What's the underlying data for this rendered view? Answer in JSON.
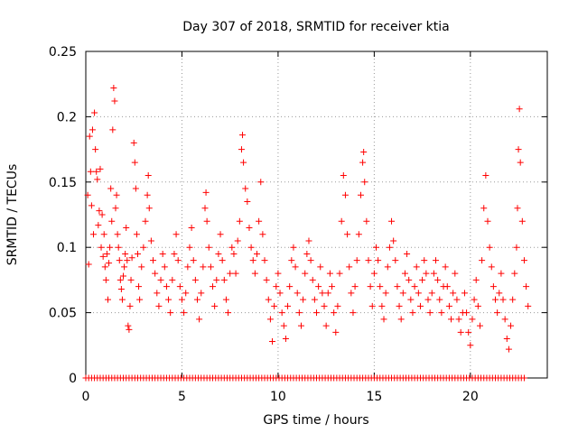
{
  "chart_data": {
    "type": "scatter",
    "title": "Day 307 of 2018, SRMTID for receiver ktia",
    "xlabel": "GPS time / hours",
    "ylabel": "SRMTID / TECUs",
    "xlim": [
      0,
      24
    ],
    "ylim": [
      0,
      0.25
    ],
    "xticks": [
      0,
      5,
      10,
      15,
      20
    ],
    "xtick_labels": [
      "0",
      "5",
      "10",
      "15",
      "20"
    ],
    "yticks": [
      0,
      0.05,
      0.1,
      0.15,
      0.2,
      0.25
    ],
    "ytick_labels": [
      "0",
      "0.05",
      "0.1",
      "0.15",
      "0.2",
      "0.25"
    ],
    "grid": true,
    "marker": "+",
    "color": "#ff0000",
    "series": [
      {
        "name": "SRMTID",
        "points": [
          [
            0.1,
            0.14
          ],
          [
            0.15,
            0.087
          ],
          [
            0.2,
            0.185
          ],
          [
            0.25,
            0.158
          ],
          [
            0.3,
            0.132
          ],
          [
            0.35,
            0.19
          ],
          [
            0.4,
            0.11
          ],
          [
            0.45,
            0.203
          ],
          [
            0.5,
            0.175
          ],
          [
            0.55,
            0.158
          ],
          [
            0.6,
            0.152
          ],
          [
            0.65,
            0.117
          ],
          [
            0.7,
            0.128
          ],
          [
            0.75,
            0.16
          ],
          [
            0.8,
            0.1
          ],
          [
            0.85,
            0.125
          ],
          [
            0.9,
            0.093
          ],
          [
            0.95,
            0.11
          ],
          [
            1.0,
            0.085
          ],
          [
            1.05,
            0.075
          ],
          [
            1.1,
            0.095
          ],
          [
            1.15,
            0.06
          ],
          [
            1.2,
            0.088
          ],
          [
            1.25,
            0.1
          ],
          [
            1.3,
            0.145
          ],
          [
            1.35,
            0.12
          ],
          [
            1.4,
            0.19
          ],
          [
            1.45,
            0.222
          ],
          [
            1.5,
            0.212
          ],
          [
            1.55,
            0.13
          ],
          [
            1.6,
            0.14
          ],
          [
            1.65,
            0.11
          ],
          [
            1.7,
            0.1
          ],
          [
            1.75,
            0.09
          ],
          [
            1.8,
            0.075
          ],
          [
            1.85,
            0.068
          ],
          [
            1.9,
            0.06
          ],
          [
            1.95,
            0.078
          ],
          [
            2.0,
            0.085
          ],
          [
            2.05,
            0.095
          ],
          [
            2.1,
            0.115
          ],
          [
            2.15,
            0.09
          ],
          [
            2.2,
            0.04
          ],
          [
            2.25,
            0.037
          ],
          [
            2.3,
            0.055
          ],
          [
            2.35,
            0.075
          ],
          [
            2.4,
            0.092
          ],
          [
            2.5,
            0.18
          ],
          [
            2.55,
            0.165
          ],
          [
            2.6,
            0.145
          ],
          [
            2.65,
            0.11
          ],
          [
            2.7,
            0.095
          ],
          [
            2.75,
            0.07
          ],
          [
            2.8,
            0.06
          ],
          [
            2.9,
            0.085
          ],
          [
            3.0,
            0.1
          ],
          [
            3.1,
            0.12
          ],
          [
            3.2,
            0.14
          ],
          [
            3.25,
            0.155
          ],
          [
            3.3,
            0.13
          ],
          [
            3.4,
            0.105
          ],
          [
            3.5,
            0.09
          ],
          [
            3.6,
            0.08
          ],
          [
            3.7,
            0.065
          ],
          [
            3.8,
            0.055
          ],
          [
            3.9,
            0.075
          ],
          [
            4.0,
            0.095
          ],
          [
            4.1,
            0.085
          ],
          [
            4.2,
            0.07
          ],
          [
            4.3,
            0.06
          ],
          [
            4.4,
            0.05
          ],
          [
            4.5,
            0.075
          ],
          [
            4.6,
            0.095
          ],
          [
            4.7,
            0.11
          ],
          [
            4.8,
            0.09
          ],
          [
            4.9,
            0.07
          ],
          [
            5.0,
            0.06
          ],
          [
            5.1,
            0.05
          ],
          [
            5.2,
            0.065
          ],
          [
            5.3,
            0.085
          ],
          [
            5.4,
            0.1
          ],
          [
            5.5,
            0.115
          ],
          [
            5.6,
            0.09
          ],
          [
            5.7,
            0.075
          ],
          [
            5.8,
            0.06
          ],
          [
            5.9,
            0.045
          ],
          [
            6.0,
            0.065
          ],
          [
            6.1,
            0.085
          ],
          [
            6.2,
            0.13
          ],
          [
            6.25,
            0.142
          ],
          [
            6.3,
            0.12
          ],
          [
            6.4,
            0.1
          ],
          [
            6.5,
            0.085
          ],
          [
            6.6,
            0.07
          ],
          [
            6.7,
            0.055
          ],
          [
            6.8,
            0.075
          ],
          [
            6.9,
            0.095
          ],
          [
            7.0,
            0.11
          ],
          [
            7.1,
            0.09
          ],
          [
            7.2,
            0.075
          ],
          [
            7.3,
            0.06
          ],
          [
            7.4,
            0.05
          ],
          [
            7.5,
            0.08
          ],
          [
            7.6,
            0.1
          ],
          [
            7.7,
            0.095
          ],
          [
            7.8,
            0.08
          ],
          [
            7.9,
            0.105
          ],
          [
            8.0,
            0.12
          ],
          [
            8.1,
            0.175
          ],
          [
            8.15,
            0.186
          ],
          [
            8.2,
            0.165
          ],
          [
            8.3,
            0.145
          ],
          [
            8.4,
            0.135
          ],
          [
            8.5,
            0.115
          ],
          [
            8.6,
            0.1
          ],
          [
            8.7,
            0.09
          ],
          [
            8.8,
            0.08
          ],
          [
            8.9,
            0.095
          ],
          [
            9.0,
            0.12
          ],
          [
            9.1,
            0.15
          ],
          [
            9.2,
            0.11
          ],
          [
            9.3,
            0.09
          ],
          [
            9.4,
            0.075
          ],
          [
            9.5,
            0.06
          ],
          [
            9.6,
            0.045
          ],
          [
            9.7,
            0.028
          ],
          [
            9.8,
            0.055
          ],
          [
            9.9,
            0.07
          ],
          [
            10.0,
            0.08
          ],
          [
            10.1,
            0.065
          ],
          [
            10.2,
            0.05
          ],
          [
            10.3,
            0.04
          ],
          [
            10.4,
            0.03
          ],
          [
            10.5,
            0.055
          ],
          [
            10.6,
            0.07
          ],
          [
            10.7,
            0.09
          ],
          [
            10.8,
            0.1
          ],
          [
            10.9,
            0.085
          ],
          [
            11.0,
            0.065
          ],
          [
            11.1,
            0.05
          ],
          [
            11.2,
            0.04
          ],
          [
            11.3,
            0.06
          ],
          [
            11.4,
            0.08
          ],
          [
            11.5,
            0.095
          ],
          [
            11.6,
            0.105
          ],
          [
            11.7,
            0.09
          ],
          [
            11.8,
            0.075
          ],
          [
            11.9,
            0.06
          ],
          [
            12.0,
            0.05
          ],
          [
            12.1,
            0.07
          ],
          [
            12.2,
            0.085
          ],
          [
            12.3,
            0.065
          ],
          [
            12.4,
            0.055
          ],
          [
            12.5,
            0.04
          ],
          [
            12.6,
            0.065
          ],
          [
            12.7,
            0.08
          ],
          [
            12.8,
            0.07
          ],
          [
            12.9,
            0.05
          ],
          [
            13.0,
            0.035
          ],
          [
            13.1,
            0.055
          ],
          [
            13.2,
            0.08
          ],
          [
            13.3,
            0.12
          ],
          [
            13.4,
            0.155
          ],
          [
            13.5,
            0.14
          ],
          [
            13.6,
            0.11
          ],
          [
            13.7,
            0.085
          ],
          [
            13.8,
            0.065
          ],
          [
            13.9,
            0.05
          ],
          [
            14.0,
            0.07
          ],
          [
            14.1,
            0.09
          ],
          [
            14.2,
            0.11
          ],
          [
            14.3,
            0.14
          ],
          [
            14.4,
            0.165
          ],
          [
            14.45,
            0.173
          ],
          [
            14.5,
            0.15
          ],
          [
            14.6,
            0.12
          ],
          [
            14.7,
            0.09
          ],
          [
            14.8,
            0.07
          ],
          [
            14.9,
            0.055
          ],
          [
            15.0,
            0.08
          ],
          [
            15.1,
            0.1
          ],
          [
            15.2,
            0.09
          ],
          [
            15.3,
            0.07
          ],
          [
            15.4,
            0.055
          ],
          [
            15.5,
            0.045
          ],
          [
            15.6,
            0.065
          ],
          [
            15.7,
            0.085
          ],
          [
            15.8,
            0.1
          ],
          [
            15.9,
            0.12
          ],
          [
            16.0,
            0.105
          ],
          [
            16.1,
            0.09
          ],
          [
            16.2,
            0.07
          ],
          [
            16.3,
            0.055
          ],
          [
            16.4,
            0.045
          ],
          [
            16.5,
            0.065
          ],
          [
            16.6,
            0.08
          ],
          [
            16.7,
            0.095
          ],
          [
            16.8,
            0.075
          ],
          [
            16.9,
            0.06
          ],
          [
            17.0,
            0.05
          ],
          [
            17.1,
            0.07
          ],
          [
            17.2,
            0.085
          ],
          [
            17.3,
            0.065
          ],
          [
            17.4,
            0.055
          ],
          [
            17.5,
            0.075
          ],
          [
            17.6,
            0.09
          ],
          [
            17.7,
            0.08
          ],
          [
            17.8,
            0.06
          ],
          [
            17.9,
            0.05
          ],
          [
            18.0,
            0.065
          ],
          [
            18.1,
            0.08
          ],
          [
            18.2,
            0.09
          ],
          [
            18.3,
            0.075
          ],
          [
            18.4,
            0.06
          ],
          [
            18.5,
            0.05
          ],
          [
            18.6,
            0.07
          ],
          [
            18.7,
            0.085
          ],
          [
            18.8,
            0.07
          ],
          [
            18.9,
            0.055
          ],
          [
            19.0,
            0.045
          ],
          [
            19.1,
            0.065
          ],
          [
            19.2,
            0.08
          ],
          [
            19.3,
            0.06
          ],
          [
            19.4,
            0.045
          ],
          [
            19.5,
            0.035
          ],
          [
            19.6,
            0.05
          ],
          [
            19.7,
            0.065
          ],
          [
            19.8,
            0.05
          ],
          [
            19.9,
            0.035
          ],
          [
            20.0,
            0.025
          ],
          [
            20.1,
            0.045
          ],
          [
            20.2,
            0.06
          ],
          [
            20.3,
            0.075
          ],
          [
            20.4,
            0.055
          ],
          [
            20.5,
            0.04
          ],
          [
            20.6,
            0.09
          ],
          [
            20.7,
            0.13
          ],
          [
            20.8,
            0.155
          ],
          [
            20.9,
            0.12
          ],
          [
            21.0,
            0.1
          ],
          [
            21.1,
            0.085
          ],
          [
            21.2,
            0.07
          ],
          [
            21.3,
            0.06
          ],
          [
            21.4,
            0.05
          ],
          [
            21.5,
            0.065
          ],
          [
            21.6,
            0.08
          ],
          [
            21.7,
            0.06
          ],
          [
            21.8,
            0.045
          ],
          [
            21.9,
            0.03
          ],
          [
            22.0,
            0.022
          ],
          [
            22.1,
            0.04
          ],
          [
            22.2,
            0.06
          ],
          [
            22.3,
            0.08
          ],
          [
            22.4,
            0.1
          ],
          [
            22.45,
            0.13
          ],
          [
            22.5,
            0.175
          ],
          [
            22.55,
            0.206
          ],
          [
            22.6,
            0.165
          ],
          [
            22.7,
            0.12
          ],
          [
            22.8,
            0.09
          ],
          [
            22.9,
            0.07
          ],
          [
            23.0,
            0.055
          ]
        ]
      },
      {
        "name": "zero",
        "x_start": 0,
        "x_end": 22.9,
        "x_step": 0.15,
        "y": 0
      }
    ]
  }
}
